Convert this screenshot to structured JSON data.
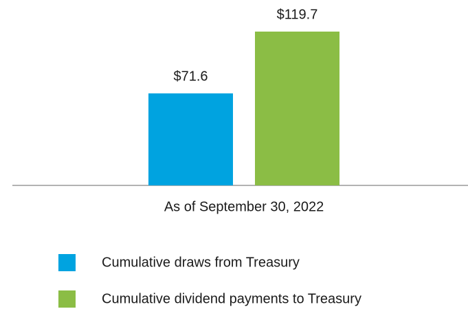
{
  "chart_data": {
    "type": "bar",
    "categories": [
      "As of September 30, 2022"
    ],
    "series": [
      {
        "name": "Cumulative draws from Treasury",
        "color": "#00a3e0",
        "values": [
          71.6
        ],
        "value_labels": [
          "$71.6"
        ]
      },
      {
        "name": "Cumulative dividend payments to Treasury",
        "color": "#8bbd45",
        "values": [
          119.7
        ],
        "value_labels": [
          "$119.7"
        ]
      }
    ]
  }
}
